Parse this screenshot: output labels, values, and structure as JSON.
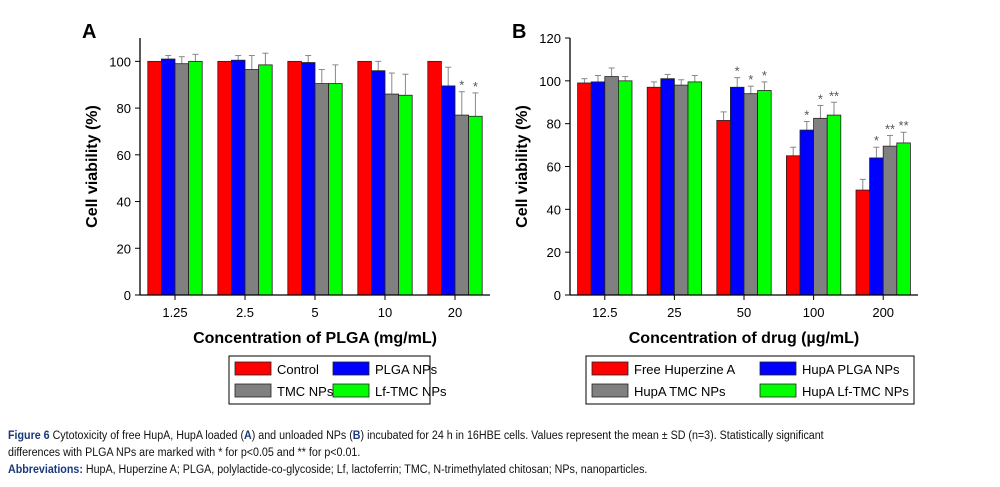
{
  "chart_data": [
    {
      "type": "bar",
      "panel": "A",
      "xlabel": "Concentration of PLGA (mg/mL)",
      "ylabel": "Cell viability (%)",
      "ylim": [
        0,
        110
      ],
      "yticks": [
        0,
        20,
        40,
        60,
        80,
        100
      ],
      "categories": [
        "1.25",
        "2.5",
        "5",
        "10",
        "20"
      ],
      "grid": false,
      "legend_placement": "bottom",
      "series": [
        {
          "name": "Control",
          "color": "#ff0000",
          "values": [
            100,
            100,
            100,
            100,
            100
          ],
          "errors": [
            0,
            0,
            0,
            0,
            0
          ],
          "stars": [
            "",
            "",
            "",
            "",
            ""
          ]
        },
        {
          "name": "PLGA NPs",
          "color": "#0000ff",
          "values": [
            101,
            100.5,
            99.5,
            96,
            89.5
          ],
          "errors": [
            1.5,
            2,
            3,
            4,
            8
          ],
          "stars": [
            "",
            "",
            "",
            "",
            ""
          ]
        },
        {
          "name": "TMC NPs",
          "color": "#808080",
          "values": [
            99,
            96.5,
            90.5,
            86,
            77
          ],
          "errors": [
            3,
            6,
            6,
            9,
            10
          ],
          "stars": [
            "",
            "",
            "",
            "",
            "*"
          ]
        },
        {
          "name": "Lf-TMC NPs",
          "color": "#00ff00",
          "values": [
            100,
            98.5,
            90.5,
            85.5,
            76.5
          ],
          "errors": [
            3,
            5,
            8,
            9,
            10
          ],
          "stars": [
            "",
            "",
            "",
            "",
            "*"
          ]
        }
      ]
    },
    {
      "type": "bar",
      "panel": "B",
      "xlabel": "Concentration of drug (µg/mL)",
      "ylabel": "Cell viability (%)",
      "ylim": [
        0,
        120
      ],
      "yticks": [
        0,
        20,
        40,
        60,
        80,
        100,
        120
      ],
      "categories": [
        "12.5",
        "25",
        "50",
        "100",
        "200"
      ],
      "grid": false,
      "legend_placement": "bottom",
      "series": [
        {
          "name": "Free Huperzine A",
          "color": "#ff0000",
          "values": [
            99,
            97,
            81.5,
            65,
            49
          ],
          "errors": [
            2,
            2.5,
            4,
            4,
            5
          ],
          "stars": [
            "",
            "",
            "",
            "",
            ""
          ]
        },
        {
          "name": "HupA PLGA NPs",
          "color": "#0000ff",
          "values": [
            99.5,
            101,
            97,
            77,
            64
          ],
          "errors": [
            3,
            2,
            4.5,
            4,
            5
          ],
          "stars": [
            "",
            "",
            "*",
            "*",
            "*"
          ]
        },
        {
          "name": "HupA TMC NPs",
          "color": "#808080",
          "values": [
            102,
            98,
            94,
            82.5,
            69.5
          ],
          "errors": [
            4,
            2.5,
            3.5,
            6,
            5
          ],
          "stars": [
            "",
            "",
            "*",
            "*",
            "**"
          ]
        },
        {
          "name": "HupA Lf-TMC NPs",
          "color": "#00ff00",
          "values": [
            100,
            99.5,
            95.5,
            84,
            71
          ],
          "errors": [
            2,
            3,
            4,
            6,
            5
          ],
          "stars": [
            "",
            "",
            "*",
            "**",
            "**"
          ]
        }
      ]
    }
  ],
  "caption": {
    "figure_label": "Figure 6",
    "line1_a": "Cytotoxicity of free HupA, HupA loaded (",
    "A": "A",
    "line1_b": ") and unloaded NPs (",
    "B": "B",
    "line1_c": ") incubated for 24 h in 16HBE cells. Values represent the mean ± SD (n=3). Statistically significant",
    "line2": "differences with PLGA NPs are marked with * for p<0.05 and ** for p<0.01.",
    "abbrev_label": "Abbreviations:",
    "abbrev_text": "HupA, Huperzine A; PLGA, polylactide-co-glycoside; Lf, lactoferrin; TMC, N-trimethylated chitosan; NPs, nanoparticles."
  }
}
